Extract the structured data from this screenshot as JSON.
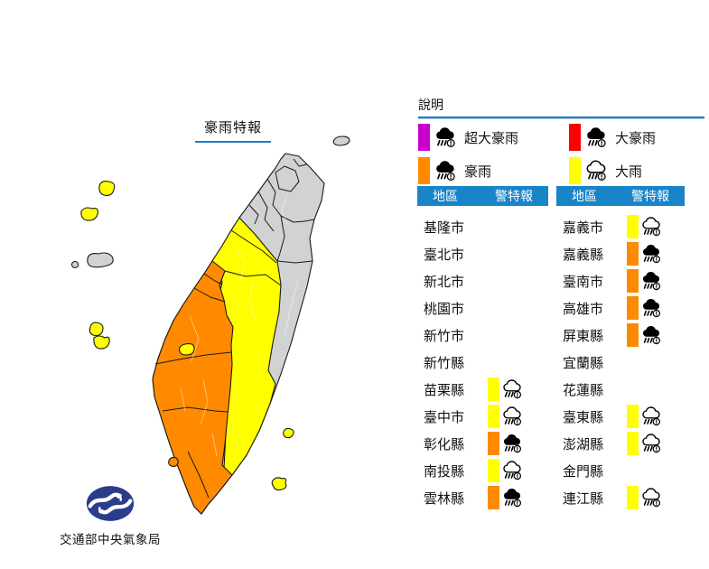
{
  "title": {
    "text": "豪雨特報"
  },
  "legend": {
    "heading": "說明",
    "items": [
      {
        "label": "超大豪雨",
        "color": "#CC00CC",
        "cloud": "black"
      },
      {
        "label": "大豪雨",
        "color": "#FF0000",
        "cloud": "black"
      },
      {
        "label": "豪雨",
        "color": "#FF8A00",
        "cloud": "black"
      },
      {
        "label": "大雨",
        "color": "#FFFF00",
        "cloud": "white"
      }
    ]
  },
  "tables": [
    {
      "headers": {
        "region": "地區",
        "warning": "警特報"
      },
      "rows": [
        {
          "name": "基隆市",
          "warning": ""
        },
        {
          "name": "臺北市",
          "warning": ""
        },
        {
          "name": "新北市",
          "warning": ""
        },
        {
          "name": "桃園市",
          "warning": ""
        },
        {
          "name": "新竹市",
          "warning": ""
        },
        {
          "name": "新竹縣",
          "warning": ""
        },
        {
          "name": "苗栗縣",
          "warning": "大雨"
        },
        {
          "name": "臺中市",
          "warning": "大雨"
        },
        {
          "name": "彰化縣",
          "warning": "豪雨"
        },
        {
          "name": "南投縣",
          "warning": "大雨"
        },
        {
          "name": "雲林縣",
          "warning": "豪雨"
        }
      ]
    },
    {
      "headers": {
        "region": "地區",
        "warning": "警特報"
      },
      "rows": [
        {
          "name": "嘉義市",
          "warning": "大雨"
        },
        {
          "name": "嘉義縣",
          "warning": "豪雨"
        },
        {
          "name": "臺南市",
          "warning": "豪雨"
        },
        {
          "name": "高雄市",
          "warning": "豪雨"
        },
        {
          "name": "屏東縣",
          "warning": "豪雨"
        },
        {
          "name": "宜蘭縣",
          "warning": ""
        },
        {
          "name": "花蓮縣",
          "warning": ""
        },
        {
          "name": "臺東縣",
          "warning": "大雨"
        },
        {
          "name": "澎湖縣",
          "warning": "大雨"
        },
        {
          "name": "金門縣",
          "warning": ""
        },
        {
          "name": "連江縣",
          "warning": "大雨"
        }
      ]
    }
  ],
  "map": {
    "region_levels": {
      "north_and_east_counties": "none-gray",
      "miaoli_taichung_nantou_taitung": "大雨-yellow",
      "changhua_to_pingtung_southwest": "豪雨-orange",
      "chiayi_city_enclave": "大雨-yellow",
      "matsu_islands": "大雨-yellow",
      "kinmen_islands": "none-gray",
      "penghu_islands": "大雨-yellow",
      "green_island": "大雨-yellow",
      "orchid_island": "大雨-yellow",
      "liuqiu_island": "豪雨-orange",
      "guishan_island": "none-gray"
    }
  },
  "footer": {
    "agency": "交通部中央氣象局"
  },
  "colors": {
    "header_blue": "#1984C8",
    "line_blue": "#1A7CC8",
    "map_gray": "#D2D2D2",
    "warn_yellow": "#FFFF00",
    "warn_orange": "#FF8A00",
    "warn_red": "#FF0000",
    "warn_magenta": "#CC00CC",
    "logo_navy": "#2C3C8C"
  }
}
